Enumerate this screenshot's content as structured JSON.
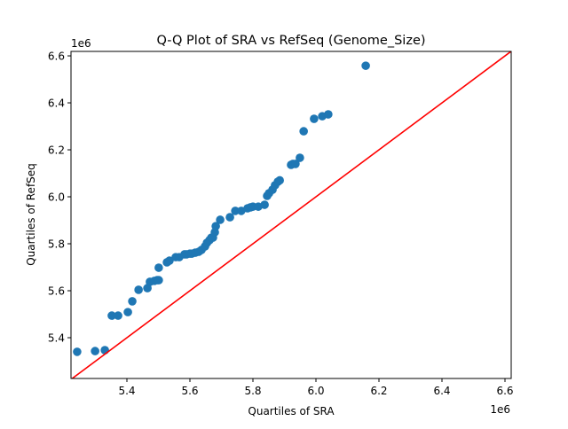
{
  "chart_data": {
    "type": "scatter",
    "title": "Q-Q Plot of SRA vs RefSeq (Genome_Size)",
    "xlabel": "Quartiles of SRA",
    "ylabel": "Quartiles of RefSeq",
    "x_offset_label": "1e6",
    "y_offset_label": "1e6",
    "xlim": [
      5.2225,
      6.6197
    ],
    "ylim": [
      5.2264,
      6.619
    ],
    "xticks": [
      "5.4",
      "5.6",
      "5.8",
      "6.0",
      "6.2",
      "6.4",
      "6.6"
    ],
    "yticks": [
      "5.4",
      "5.6",
      "5.8",
      "6.0",
      "6.2",
      "6.4",
      "6.6"
    ],
    "grid": false,
    "point_color": "#1f77b4",
    "reference_line": {
      "type": "y=x",
      "color": "#ff0000"
    },
    "x": [
      5.242,
      5.299,
      5.33,
      5.352,
      5.372,
      5.403,
      5.417,
      5.437,
      5.465,
      5.473,
      5.487,
      5.496,
      5.501,
      5.501,
      5.527,
      5.535,
      5.555,
      5.566,
      5.583,
      5.589,
      5.6,
      5.606,
      5.617,
      5.628,
      5.637,
      5.648,
      5.654,
      5.662,
      5.668,
      5.673,
      5.679,
      5.682,
      5.696,
      5.727,
      5.744,
      5.763,
      5.783,
      5.792,
      5.8,
      5.817,
      5.837,
      5.845,
      5.851,
      5.862,
      5.87,
      5.879,
      5.885,
      5.921,
      5.927,
      5.935,
      5.949,
      5.961,
      5.994,
      6.02,
      6.039,
      6.158
    ],
    "y": [
      5.34,
      5.343,
      5.347,
      5.494,
      5.494,
      5.509,
      5.555,
      5.604,
      5.611,
      5.638,
      5.642,
      5.645,
      5.645,
      5.698,
      5.721,
      5.728,
      5.743,
      5.743,
      5.755,
      5.755,
      5.758,
      5.758,
      5.762,
      5.766,
      5.774,
      5.789,
      5.804,
      5.815,
      5.826,
      5.826,
      5.849,
      5.875,
      5.902,
      5.913,
      5.94,
      5.94,
      5.951,
      5.955,
      5.958,
      5.958,
      5.966,
      6.004,
      6.015,
      6.03,
      6.049,
      6.064,
      6.07,
      6.136,
      6.14,
      6.14,
      6.166,
      6.279,
      6.332,
      6.343,
      6.351,
      6.558
    ]
  }
}
